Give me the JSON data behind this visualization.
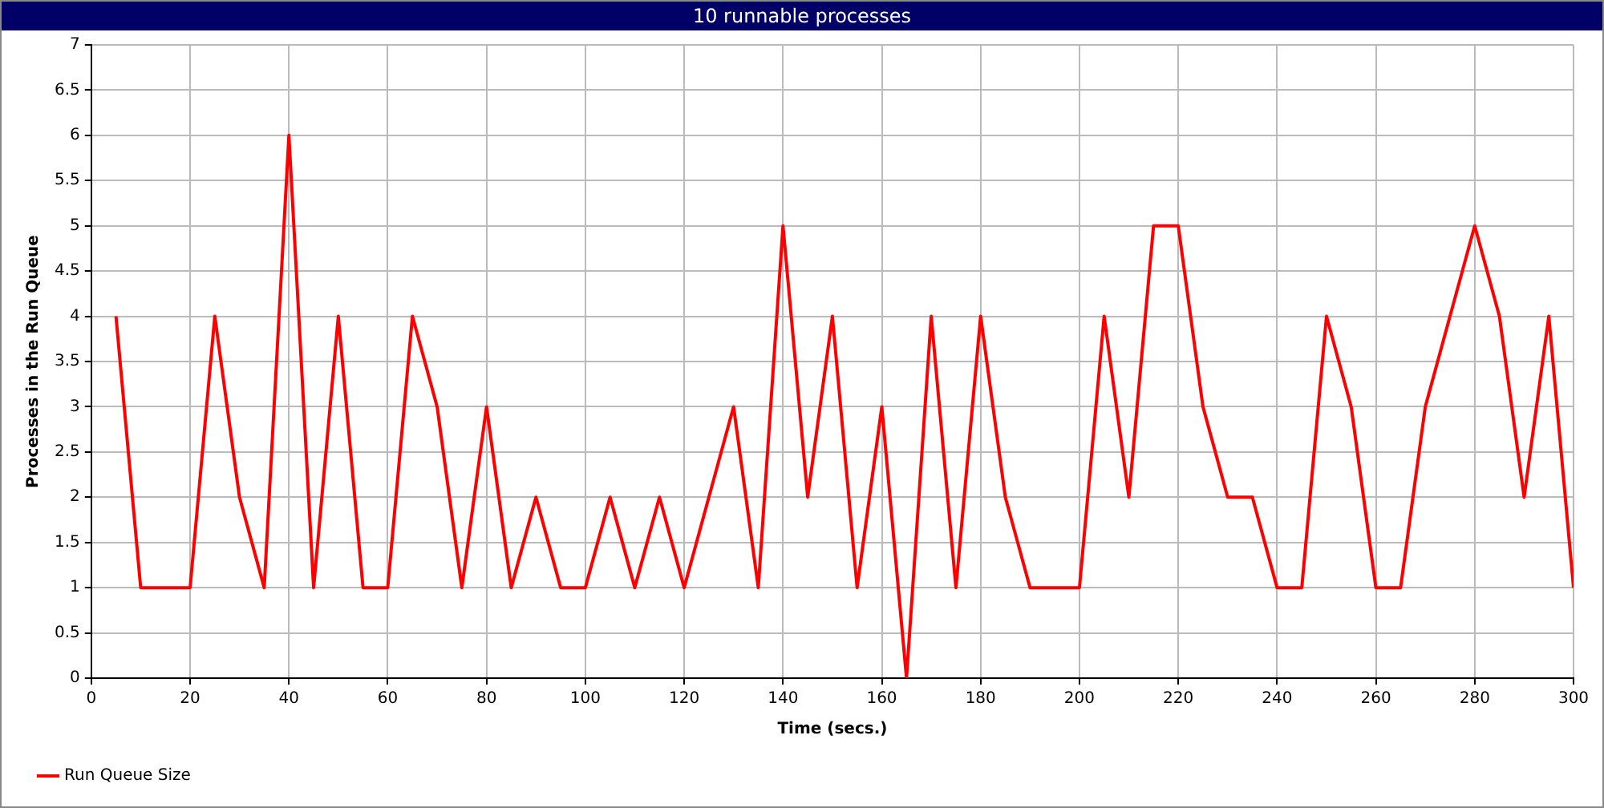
{
  "chart_data": {
    "type": "line",
    "title": "10 runnable processes",
    "xlabel": "Time (secs.)",
    "ylabel": "Processes in the Run Queue",
    "x": [
      5,
      10,
      15,
      20,
      25,
      30,
      35,
      40,
      45,
      50,
      55,
      60,
      65,
      70,
      75,
      80,
      85,
      90,
      95,
      100,
      105,
      110,
      115,
      120,
      125,
      130,
      135,
      140,
      145,
      150,
      155,
      160,
      165,
      170,
      175,
      180,
      185,
      190,
      195,
      200,
      205,
      210,
      215,
      220,
      225,
      230,
      235,
      240,
      245,
      250,
      255,
      260,
      265,
      270,
      275,
      280,
      285,
      290,
      295,
      300
    ],
    "series": [
      {
        "name": "Run Queue Size",
        "color": "#ff0000",
        "values": [
          4,
          1,
          1,
          1,
          4,
          2,
          1,
          6,
          1,
          4,
          1,
          1,
          4,
          3,
          1,
          3,
          1,
          2,
          1,
          1,
          2,
          1,
          2,
          1,
          2,
          3,
          1,
          5,
          2,
          4,
          1,
          3,
          0,
          4,
          1,
          4,
          2,
          1,
          1,
          1,
          4,
          2,
          5,
          5,
          3,
          2,
          2,
          1,
          1,
          4,
          3,
          1,
          1,
          3,
          4,
          5,
          4,
          2,
          4,
          1
        ]
      }
    ],
    "xlim": [
      0,
      300
    ],
    "xticks": [
      0,
      20,
      40,
      60,
      80,
      100,
      120,
      140,
      160,
      180,
      200,
      220,
      240,
      260,
      280,
      300
    ],
    "ylim": [
      0,
      7
    ],
    "yticks": [
      0,
      0.5,
      1,
      1.5,
      2,
      2.5,
      3,
      3.5,
      4,
      4.5,
      5,
      5.5,
      6,
      6.5,
      7
    ],
    "grid": true,
    "legend": "bottom left",
    "marker": "none",
    "line_style": "solid"
  }
}
